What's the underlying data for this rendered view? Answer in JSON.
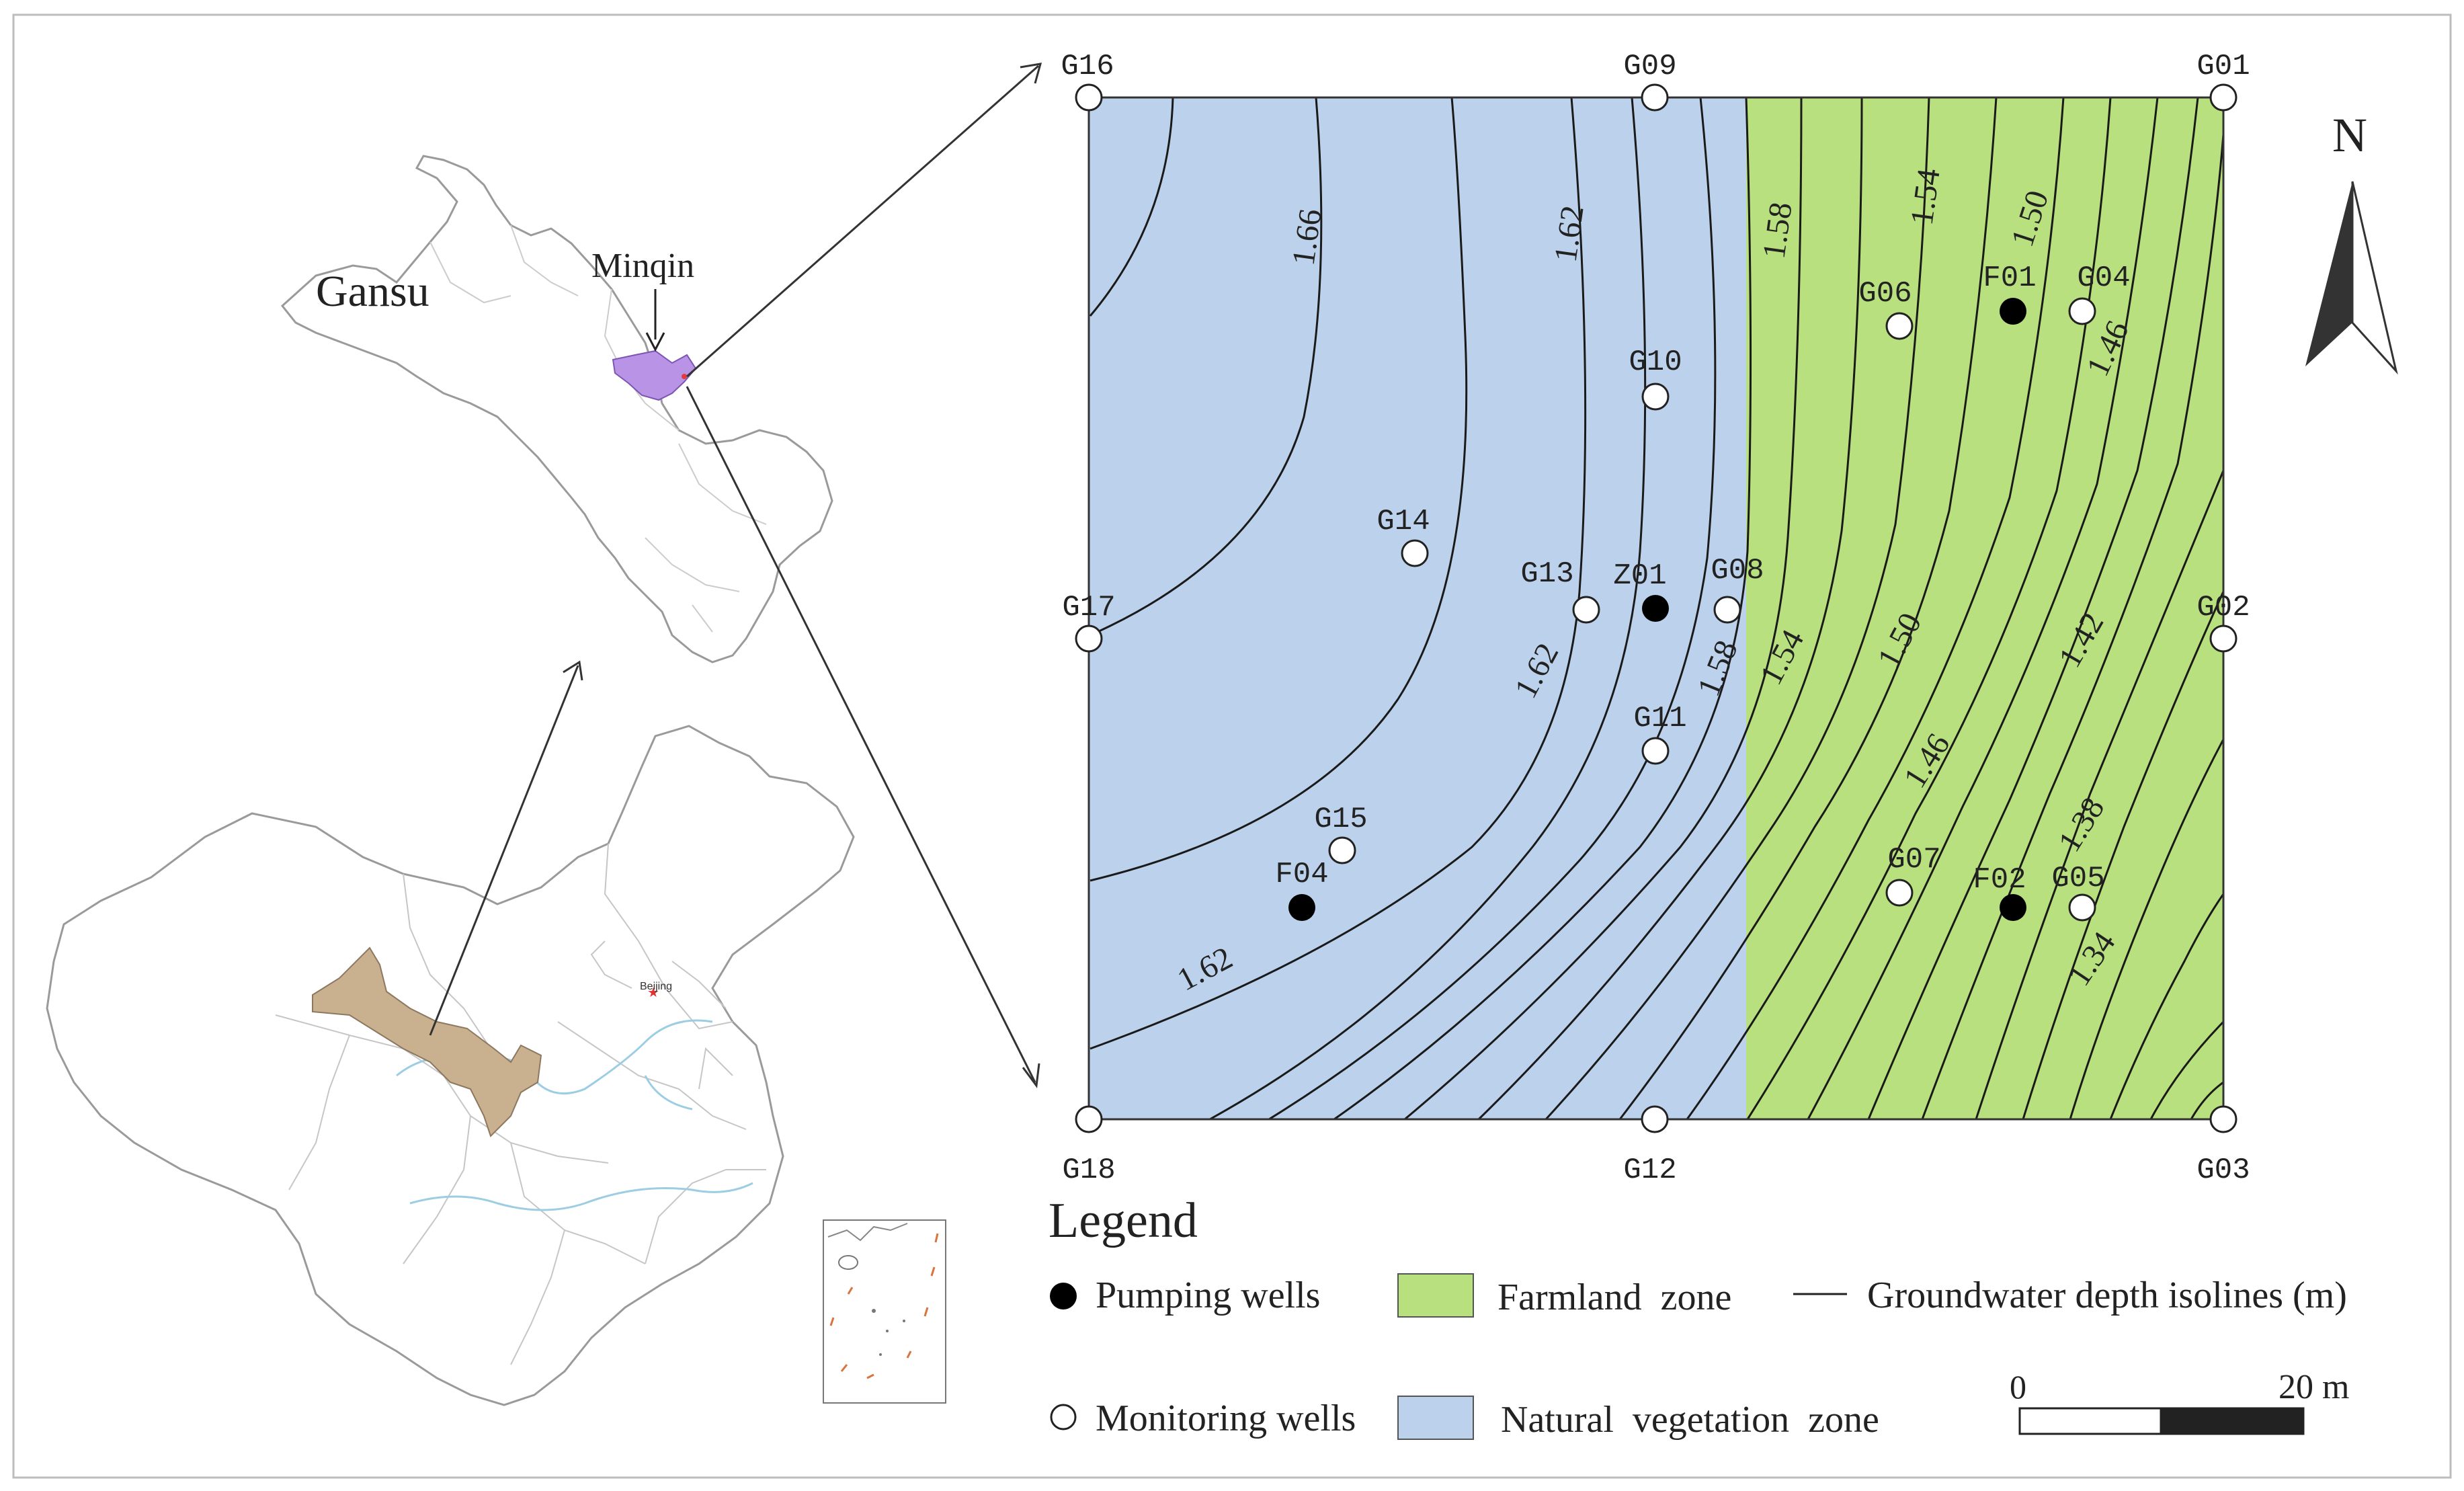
{
  "locator": {
    "province_label": "Gansu",
    "site_label": "Minqin",
    "capital_label": "Beijing",
    "colors": {
      "gansu": "#c9b18f",
      "minqin": "#b893e6",
      "border": "#9a9a9a",
      "river": "#9ccde3"
    }
  },
  "study_area": {
    "colors": {
      "natural": "#bcd2ec",
      "farmland": "#b8e07e",
      "isoline": "#1a1a1a",
      "frame": "#333333"
    },
    "isoline_labels": [
      "1.66",
      "1.62",
      "1.62",
      "1.62",
      "1.58",
      "1.58",
      "1.54",
      "1.54",
      "1.50",
      "1.50",
      "1.46",
      "1.46",
      "1.42",
      "1.38",
      "1.34"
    ],
    "monitoring_wells": [
      "G16",
      "G09",
      "G01",
      "G17",
      "G02",
      "G18",
      "G12",
      "G03",
      "G14",
      "G13",
      "G10",
      "G08",
      "G11",
      "G15",
      "G06",
      "G04",
      "G07",
      "G05"
    ],
    "pumping_wells": [
      "F01",
      "Z01",
      "F04",
      "F02"
    ],
    "north_label": "N"
  },
  "legend": {
    "title": "Legend",
    "pumping": "Pumping wells",
    "monitoring": "Monitoring wells",
    "farmland": "Farmland  zone",
    "natural": "Natural  vegetation  zone",
    "isolines": "Groundwater depth isolines (m)",
    "scale_start": "0",
    "scale_end": "20 m"
  }
}
